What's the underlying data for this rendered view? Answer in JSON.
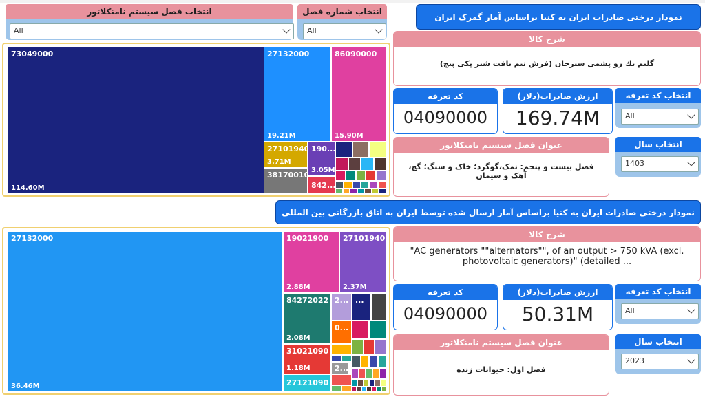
{
  "filters": {
    "nomenclature_title": "انتخاب فصل سیستم نامنکلاتور",
    "nomenclature_value": "All",
    "chapter_title": "انتخاب شماره فصل",
    "chapter_value": "All"
  },
  "section1": {
    "header": "نمودار درختی صادرات ایران به کنیا براساس آمار گمرک ایران",
    "desc_title": "شرح کالا",
    "desc_text": "گلیم یك رو پشمی سیرجان (فرش نیم بافت شیر پکی پیچ)",
    "tariff_title": "کد تعرفه",
    "tariff_value": "04090000",
    "export_title": "ارزش صادرات(دلار)",
    "export_value": "169.74M",
    "select_tariff_title": "انتخاب کد تعرفه",
    "select_tariff_value": "All",
    "nomen_title": "عنوان فصل سیستم نامنکلاتور",
    "nomen_text": "فصل بیست و پنجم: نمک،گوگرد؛ خاک و سنگ؛ گچ، آهک و سیمان",
    "year_title": "انتخاب سال",
    "year_value": "1403"
  },
  "section2": {
    "header": "نمودار درختی صادرات ایران به  کنیا براساس آمار ارسال شده توسط ایران به اتاق بازرگانی بین المللی",
    "desc_title": "شرح کالا",
    "desc_text": "\"AC generators \"\"alternators\"\", of an output > 750 kVA (excl. photovoltaic generators)\" (detailed ...",
    "tariff_title": "کد تعرفه",
    "tariff_value": "04090000",
    "export_title": "ارزش صادرات(دلار)",
    "export_value": "50.31M",
    "select_tariff_title": "انتخاب کد تعرفه",
    "select_tariff_value": "All",
    "nomen_title": "عنوان فصل سیستم نامنکلاتور",
    "nomen_text": "فصل اول: حیوانات زنده",
    "year_title": "انتخاب سال",
    "year_value": "2023"
  },
  "chart_data": [
    {
      "type": "treemap",
      "tiles": [
        {
          "label": "73049000",
          "value": "114.60M",
          "color": "#1a237e"
        },
        {
          "label": "27132000",
          "value": "19.21M",
          "color": "#1e90ff"
        },
        {
          "label": "86090000",
          "value": "15.90M",
          "color": "#e040a0"
        },
        {
          "label": "27101940",
          "value": "3.71M",
          "color": "#d4a800"
        },
        {
          "label": "190...",
          "value": "3.05M",
          "color": "#6a3fb5"
        },
        {
          "label": "38170010",
          "value": "",
          "color": "#777777"
        },
        {
          "label": "842...",
          "value": "",
          "color": "#e53950"
        }
      ]
    },
    {
      "type": "treemap",
      "tiles": [
        {
          "label": "27132000",
          "value": "36.46M",
          "color": "#2196f3"
        },
        {
          "label": "19021900",
          "value": "2.88M",
          "color": "#e040a0"
        },
        {
          "label": "27101940",
          "value": "2.37M",
          "color": "#7e4fc4"
        },
        {
          "label": "84272022",
          "value": "2.08M",
          "color": "#1e7a6f"
        },
        {
          "label": "2...",
          "value": "",
          "color": "#b39ddb"
        },
        {
          "label": "...",
          "value": "",
          "color": "#1a237e"
        },
        {
          "label": "0...",
          "value": "",
          "color": "#ff6f00"
        },
        {
          "label": "31021090",
          "value": "1.18M",
          "color": "#e53935"
        },
        {
          "label": "2...",
          "value": "",
          "color": "#999999"
        },
        {
          "label": "27121090",
          "value": "",
          "color": "#26c6da"
        }
      ]
    }
  ]
}
